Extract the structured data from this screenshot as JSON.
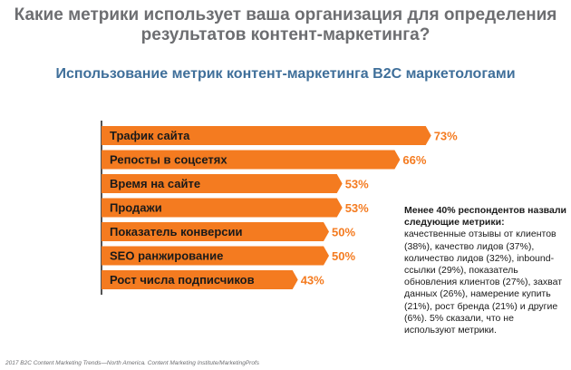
{
  "header": {
    "title_line1": "Какие метрики использует ваша организация для определения",
    "title_line2": "результатов контент-маркетинга?",
    "subtitle": "Использование метрик контент-маркетинга B2C маркетологами"
  },
  "chart_data": {
    "type": "bar",
    "orientation": "horizontal",
    "title": "Использование метрик контент-маркетинга B2C маркетологами",
    "categories": [
      "Трафик сайта",
      "Репосты в соцсетях",
      "Время на сайте",
      "Продажи",
      "Показатель конверсии",
      "SEO ранжирование",
      "Рост числа подписчиков"
    ],
    "values": [
      73,
      66,
      53,
      53,
      50,
      50,
      43
    ],
    "value_labels": [
      "73%",
      "66%",
      "53%",
      "53%",
      "50%",
      "50%",
      "43%"
    ],
    "unit": "%",
    "xlim": [
      0,
      100
    ],
    "grid": false,
    "colors": {
      "bar": "#f47b20",
      "axis": "#1a1a1a"
    }
  },
  "note": {
    "heading": "Менее 40% респондентов назвали следующие метрики:",
    "body": "качественные отзывы от клиентов (38%), качество лидов (37%), количество лидов (32%), inbound-ссылки (29%), показатель обновления клиентов (27%), захват данных (26%), намерение купить (21%), рост бренда (21%) и другие (6%). 5% сказали, что не используют метрики."
  },
  "source": "2017 B2C Content Marketing Trends—North America. Content Marketing Institute/MarketingProfs"
}
